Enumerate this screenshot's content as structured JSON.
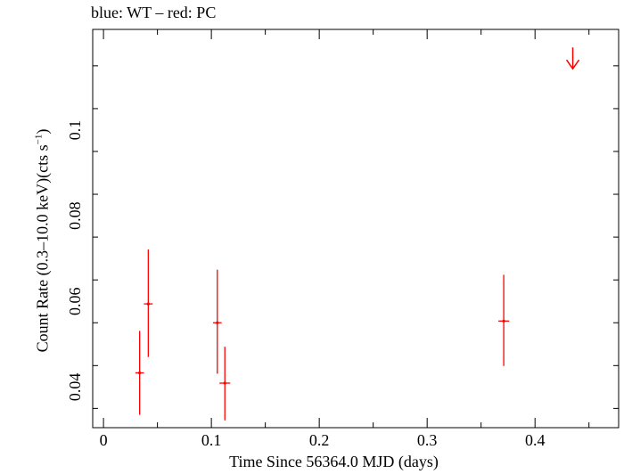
{
  "chart_data": {
    "type": "scatter",
    "title": "blue: WT – red: PC",
    "xlabel": "Time Since 56364.0 MJD (days)",
    "ylabel": "Count Rate (0.3–10.0 keV)(cts s",
    "ylabel_sup": "−1",
    "ylabel_close": ")",
    "xlim": [
      -0.01,
      0.4775
    ],
    "ylim": [
      0.0305,
      0.1235
    ],
    "xticks": [
      0,
      0.1,
      0.2,
      0.3,
      0.4
    ],
    "xtick_labels": [
      "0",
      "0.1",
      "0.2",
      "0.3",
      "0.4"
    ],
    "yticks": [
      0.04,
      0.06,
      0.08,
      0.1
    ],
    "ytick_labels": [
      "0.04",
      "0.06",
      "0.08",
      "0.1"
    ],
    "colors": {
      "pc": "#ff0000",
      "axes": "#000000"
    },
    "series": [
      {
        "name": "PC",
        "color": "#ff0000",
        "points": [
          {
            "x": 0.0335,
            "xerr": 0.004,
            "y": 0.0433,
            "ylo": 0.0335,
            "yhi": 0.0531
          },
          {
            "x": 0.0415,
            "xerr": 0.004,
            "y": 0.0594,
            "ylo": 0.047,
            "yhi": 0.0721
          },
          {
            "x": 0.1055,
            "xerr": 0.004,
            "y": 0.055,
            "ylo": 0.0431,
            "yhi": 0.0674
          },
          {
            "x": 0.1125,
            "xerr": 0.005,
            "y": 0.0409,
            "ylo": 0.0322,
            "yhi": 0.0494
          },
          {
            "x": 0.371,
            "xerr": 0.005,
            "y": 0.0554,
            "ylo": 0.0449,
            "yhi": 0.0662
          }
        ]
      }
    ],
    "upper_limits": [
      {
        "x": 0.435,
        "y": 0.1143,
        "color": "#ff0000"
      }
    ]
  }
}
